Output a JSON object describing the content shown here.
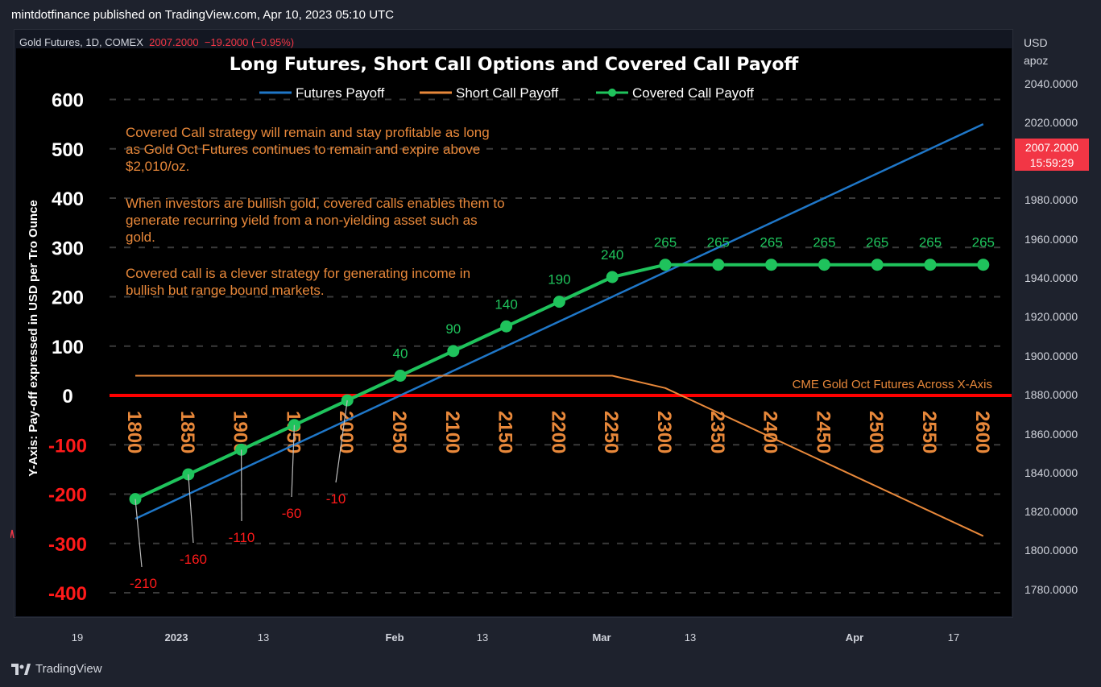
{
  "publisher": "mintdotfinance published on TradingView.com, Apr 10, 2023 05:10 UTC",
  "symbol": {
    "name": "Gold Futures, 1D, COMEX",
    "price": "2007.2000",
    "change": "−19.2000 (−0.95%)"
  },
  "price_axis": {
    "currency": "USD",
    "unit": "apoz",
    "ticks": [
      "2040.0000",
      "2020.0000",
      "1980.0000",
      "1960.0000",
      "1940.0000",
      "1920.0000",
      "1900.0000",
      "1880.0000",
      "1860.0000",
      "1840.0000",
      "1820.0000",
      "1800.0000",
      "1780.0000"
    ],
    "badge_price": "2007.2000",
    "badge_time": "15:59:29"
  },
  "time_axis": {
    "ticks": [
      "19",
      "2023",
      "13",
      "Feb",
      "13",
      "Mar",
      "13",
      "Apr",
      "17"
    ]
  },
  "footer": {
    "brand": "TradingView"
  },
  "colors": {
    "futures": "#1f77c8",
    "short_call": "#e8883a",
    "covered_call": "#1fc35c",
    "zero_line": "#ff0000",
    "annotation_text": "#e8883a",
    "negative_label": "#ff1a1a",
    "badge": "#f23645"
  },
  "chart_data": {
    "type": "line",
    "title": "Long Futures, Short Call Options and Covered Call Payoff",
    "ylabel": "Y-Axis: Pay-off expressed in USD per Tro Ounce",
    "xlabel": "CME Gold Oct Futures Across X-Axis",
    "categories": [
      "1800",
      "1850",
      "1900",
      "1950",
      "2000",
      "2050",
      "2100",
      "2150",
      "2200",
      "2250",
      "2300",
      "2350",
      "2400",
      "2450",
      "2500",
      "2550",
      "2600"
    ],
    "yticks": [
      "600",
      "500",
      "400",
      "300",
      "200",
      "100",
      "0",
      "-100",
      "-200",
      "-300",
      "-400"
    ],
    "ylim": [
      -400,
      600
    ],
    "grid": true,
    "legend_position": "top",
    "series": [
      {
        "name": "Futures Payoff",
        "values": [
          -250,
          -200,
          -150,
          -100,
          -50,
          0,
          50,
          100,
          150,
          200,
          250,
          300,
          350,
          400,
          450,
          500,
          550
        ]
      },
      {
        "name": "Short Call Payoff",
        "values": [
          40,
          40,
          40,
          40,
          40,
          40,
          40,
          40,
          40,
          40,
          15,
          -35,
          -85,
          -135,
          -185,
          -235,
          -285
        ]
      },
      {
        "name": "Covered Call Payoff",
        "values": [
          -210,
          -160,
          -110,
          -60,
          -10,
          40,
          90,
          140,
          190,
          240,
          265,
          265,
          265,
          265,
          265,
          265,
          265
        ]
      }
    ],
    "covered_labels": [
      "-210",
      "-160",
      "-110",
      "-60",
      "-10",
      "40",
      "90",
      "140",
      "190",
      "240",
      "265",
      "265",
      "265",
      "265",
      "265",
      "265",
      "265"
    ],
    "annotations": [
      "Covered Call strategy will remain and stay profitable as long as Gold Oct Futures continues to remain and expire above $2,010/oz.",
      "When investors are bullish gold, covered calls enables them to generate recurring yield from a non-yielding asset such as gold.",
      "Covered call is a clever strategy for generating income in bullish but range bound markets."
    ]
  }
}
